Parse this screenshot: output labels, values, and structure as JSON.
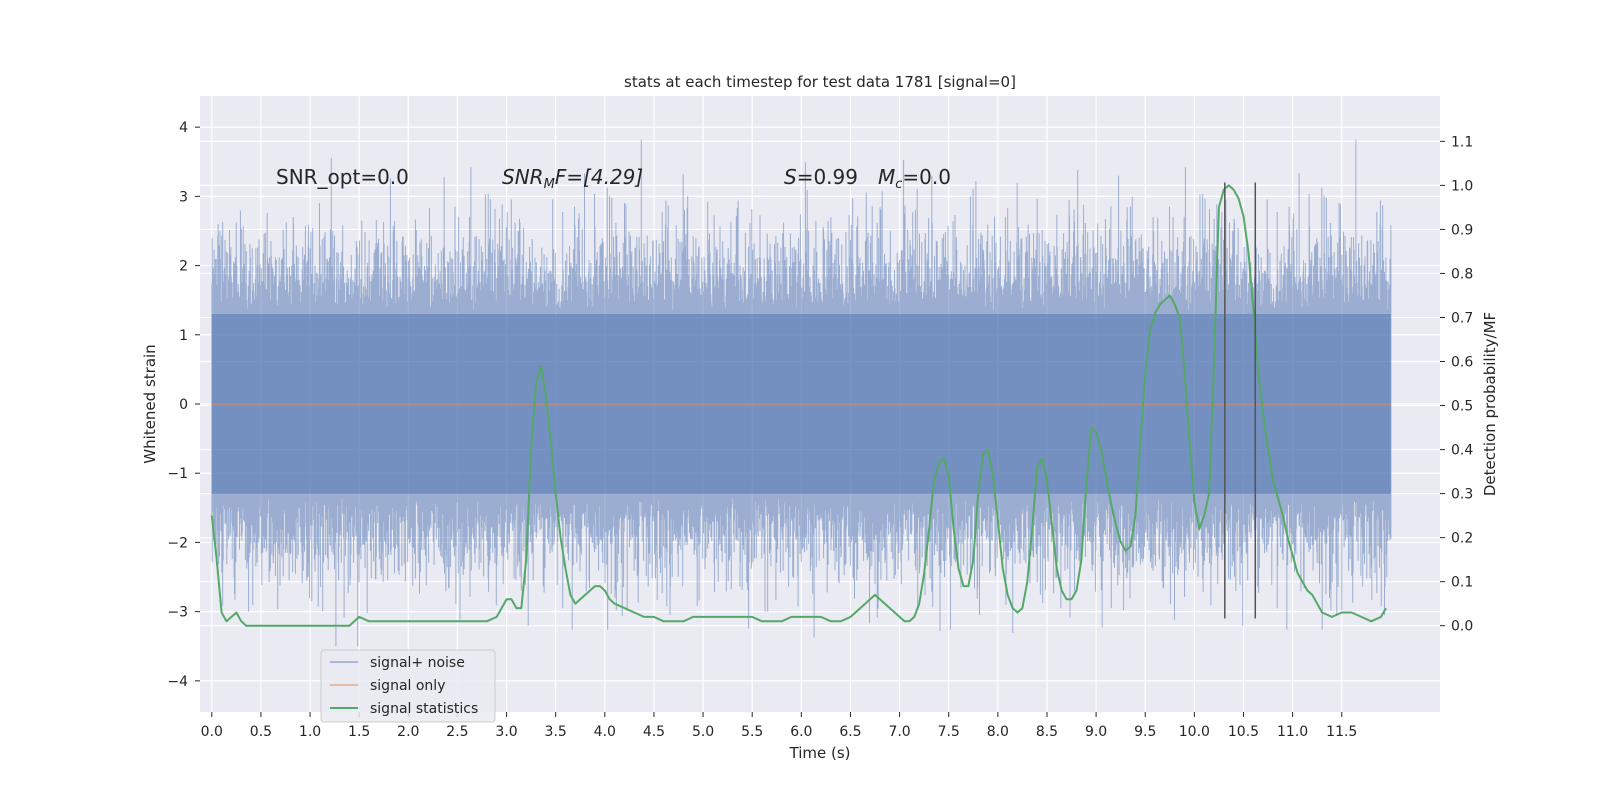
{
  "chart_data": {
    "type": "line",
    "title": "stats at each timestep for test data 1781 [signal=0]",
    "xlabel": "Time (s)",
    "ylabel": "Whitened strain",
    "y2label": "Detection probability/MF",
    "xlim": [
      -0.12,
      12.5
    ],
    "ylim": [
      -4.45,
      4.45
    ],
    "y2lim": [
      -0.196,
      1.203
    ],
    "x_ticks": [
      "0.0",
      "0.5",
      "1.0",
      "1.5",
      "2.0",
      "2.5",
      "3.0",
      "3.5",
      "4.0",
      "4.5",
      "5.0",
      "5.5",
      "6.0",
      "6.5",
      "7.0",
      "7.5",
      "8.0",
      "8.5",
      "9.0",
      "9.5",
      "10.0",
      "10.5",
      "11.0",
      "11.5"
    ],
    "y_ticks": [
      "−4",
      "−3",
      "−2",
      "−1",
      "0",
      "1",
      "2",
      "3",
      "4"
    ],
    "y2_ticks": [
      "0.0",
      "0.1",
      "0.2",
      "0.3",
      "0.4",
      "0.5",
      "0.6",
      "0.7",
      "0.8",
      "0.9",
      "1.0",
      "1.1"
    ],
    "grid": true,
    "legend_position": "lower-left",
    "annotations": {
      "snr_opt": "SNR_opt=0.0",
      "snr_mf_name": "SNR",
      "snr_mf_sub": "M",
      "snr_mf_rest": "F=[4.29]",
      "s_name": "S",
      "s_value": "=0.99",
      "mc_name": "M",
      "mc_sub": "c",
      "mc_value": "=0.0"
    },
    "vertical_lines_x": [
      10.31,
      10.62
    ],
    "vertical_lines_yrange": [
      -3.1,
      3.2
    ],
    "series": [
      {
        "name": "signal+ noise",
        "color": "#4c72b0",
        "axis": "left",
        "kind": "noise-band",
        "x_range": [
          0.0,
          12.0
        ],
        "typical_envelope": [
          -1.9,
          2.0
        ],
        "peak_range": [
          -3.5,
          4.1
        ]
      },
      {
        "name": "signal only",
        "color": "#dd8452",
        "axis": "left",
        "kind": "flat",
        "x_range": [
          0.0,
          12.0
        ],
        "value": 0.0
      },
      {
        "name": "signal statistics",
        "color": "#55a868",
        "axis": "right",
        "x": [
          0.0,
          0.05,
          0.1,
          0.15,
          0.2,
          0.25,
          0.3,
          0.35,
          0.4,
          0.5,
          0.6,
          0.7,
          0.8,
          0.9,
          1.0,
          1.1,
          1.2,
          1.3,
          1.4,
          1.5,
          1.6,
          1.7,
          1.8,
          1.9,
          2.0,
          2.1,
          2.2,
          2.3,
          2.4,
          2.5,
          2.6,
          2.7,
          2.8,
          2.9,
          3.0,
          3.05,
          3.1,
          3.15,
          3.2,
          3.25,
          3.3,
          3.35,
          3.4,
          3.45,
          3.5,
          3.55,
          3.6,
          3.65,
          3.7,
          3.75,
          3.8,
          3.85,
          3.9,
          3.95,
          4.0,
          4.05,
          4.1,
          4.2,
          4.3,
          4.4,
          4.5,
          4.6,
          4.7,
          4.8,
          4.9,
          5.0,
          5.1,
          5.2,
          5.3,
          5.4,
          5.5,
          5.6,
          5.7,
          5.8,
          5.9,
          6.0,
          6.1,
          6.2,
          6.3,
          6.4,
          6.5,
          6.6,
          6.7,
          6.75,
          6.8,
          6.9,
          7.0,
          7.05,
          7.1,
          7.15,
          7.2,
          7.25,
          7.3,
          7.35,
          7.4,
          7.45,
          7.5,
          7.55,
          7.6,
          7.65,
          7.7,
          7.75,
          7.8,
          7.85,
          7.9,
          7.95,
          8.0,
          8.05,
          8.1,
          8.15,
          8.2,
          8.25,
          8.3,
          8.35,
          8.4,
          8.45,
          8.5,
          8.55,
          8.6,
          8.65,
          8.7,
          8.75,
          8.8,
          8.85,
          8.9,
          8.95,
          9.0,
          9.05,
          9.1,
          9.15,
          9.2,
          9.25,
          9.3,
          9.35,
          9.4,
          9.45,
          9.5,
          9.55,
          9.6,
          9.65,
          9.7,
          9.75,
          9.8,
          9.85,
          9.9,
          9.95,
          10.0,
          10.05,
          10.1,
          10.15,
          10.2,
          10.25,
          10.3,
          10.35,
          10.4,
          10.45,
          10.5,
          10.55,
          10.6,
          10.65,
          10.7,
          10.75,
          10.8,
          10.85,
          10.9,
          10.95,
          11.0,
          11.05,
          11.1,
          11.15,
          11.2,
          11.25,
          11.3,
          11.4,
          11.5,
          11.6,
          11.7,
          11.8,
          11.9,
          11.95
        ],
        "values": [
          0.25,
          0.15,
          0.03,
          0.01,
          0.02,
          0.03,
          0.01,
          0.0,
          0.0,
          0.0,
          0.0,
          0.0,
          0.0,
          0.0,
          0.0,
          0.0,
          0.0,
          0.0,
          0.0,
          0.02,
          0.01,
          0.01,
          0.01,
          0.01,
          0.01,
          0.01,
          0.01,
          0.01,
          0.01,
          0.01,
          0.01,
          0.01,
          0.01,
          0.02,
          0.06,
          0.06,
          0.04,
          0.04,
          0.15,
          0.4,
          0.55,
          0.59,
          0.52,
          0.42,
          0.3,
          0.2,
          0.13,
          0.07,
          0.05,
          0.06,
          0.07,
          0.08,
          0.09,
          0.09,
          0.08,
          0.06,
          0.05,
          0.04,
          0.03,
          0.02,
          0.02,
          0.01,
          0.01,
          0.01,
          0.02,
          0.02,
          0.02,
          0.02,
          0.02,
          0.02,
          0.02,
          0.01,
          0.01,
          0.01,
          0.02,
          0.02,
          0.02,
          0.02,
          0.01,
          0.01,
          0.02,
          0.04,
          0.06,
          0.07,
          0.06,
          0.04,
          0.02,
          0.01,
          0.01,
          0.02,
          0.05,
          0.12,
          0.22,
          0.33,
          0.37,
          0.38,
          0.34,
          0.22,
          0.13,
          0.09,
          0.09,
          0.15,
          0.3,
          0.39,
          0.4,
          0.34,
          0.24,
          0.13,
          0.07,
          0.04,
          0.03,
          0.04,
          0.1,
          0.22,
          0.36,
          0.38,
          0.33,
          0.23,
          0.13,
          0.08,
          0.06,
          0.06,
          0.08,
          0.15,
          0.32,
          0.45,
          0.44,
          0.4,
          0.34,
          0.28,
          0.23,
          0.19,
          0.17,
          0.18,
          0.25,
          0.42,
          0.57,
          0.67,
          0.71,
          0.73,
          0.74,
          0.75,
          0.73,
          0.7,
          0.58,
          0.42,
          0.28,
          0.22,
          0.25,
          0.3,
          0.6,
          0.95,
          0.99,
          1.0,
          0.99,
          0.97,
          0.93,
          0.85,
          0.72,
          0.58,
          0.48,
          0.4,
          0.33,
          0.29,
          0.25,
          0.2,
          0.16,
          0.12,
          0.1,
          0.08,
          0.07,
          0.05,
          0.03,
          0.02,
          0.03,
          0.03,
          0.02,
          0.01,
          0.02,
          0.04
        ]
      }
    ]
  }
}
